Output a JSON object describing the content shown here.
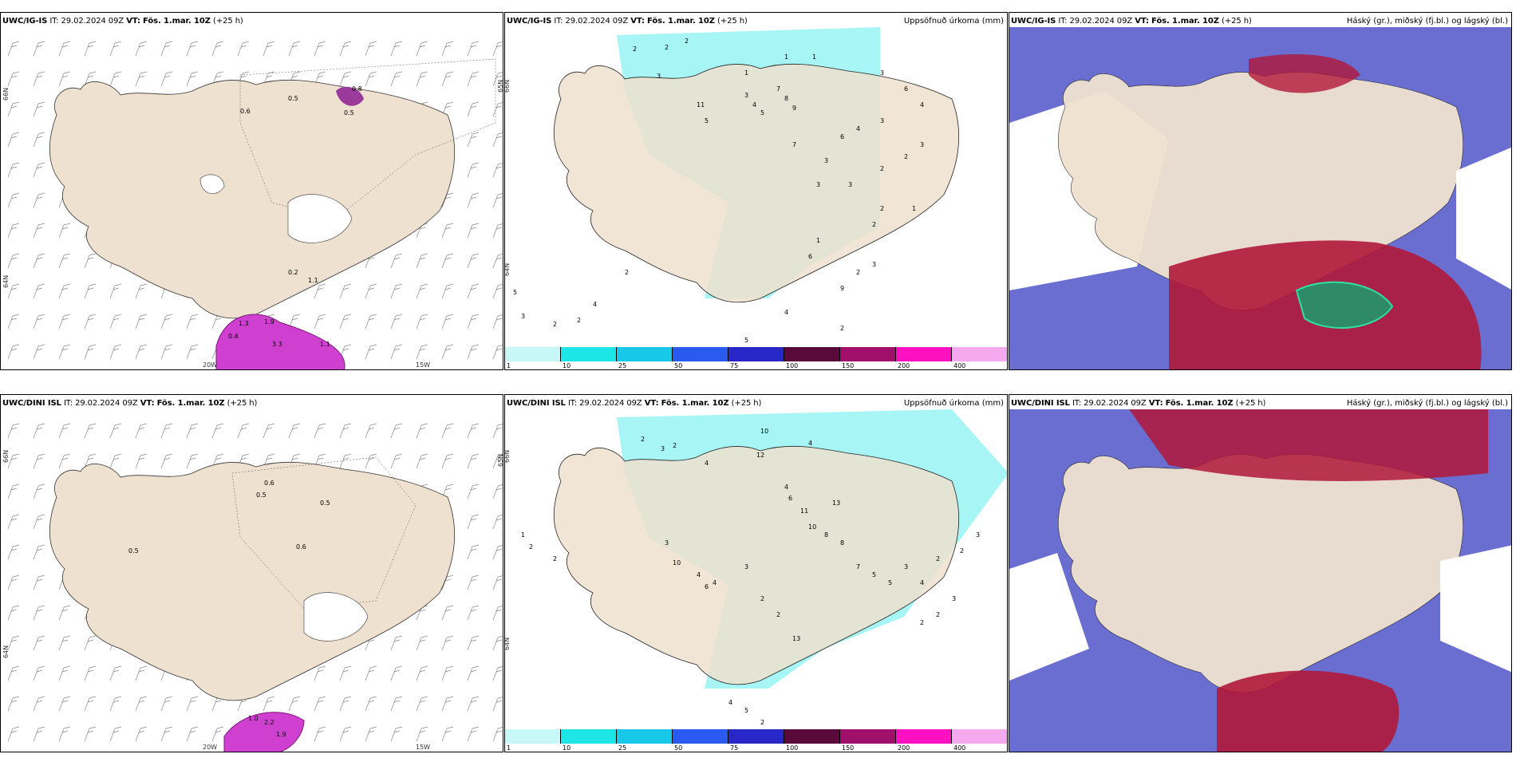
{
  "panels": [
    {
      "id": "top-left",
      "model": "UWC/IG-IS",
      "it_label": "IT:",
      "it": "29.02.2024 09Z",
      "vt_label": "VT:",
      "vt": "Fös. 1.mar. 10Z",
      "lead": "(+25 h)",
      "right_title": "",
      "lat_labels": [
        "66N",
        "64N",
        "65N"
      ],
      "lon_labels": [
        "20W",
        "15W"
      ],
      "value_labels": [
        "0.5",
        "0.5",
        "0.6",
        "0.8",
        "0.4",
        "1.3",
        "1.9",
        "3.3",
        "1.1",
        "0.2",
        "1.1"
      ]
    },
    {
      "id": "top-middle",
      "model": "UWC/IG-IS",
      "it_label": "IT:",
      "it": "29.02.2024 09Z",
      "vt_label": "VT:",
      "vt": "Fös. 1.mar. 10Z",
      "lead": "(+25 h)",
      "right_title": "Uppsöfnuð úrkoma (mm)",
      "lat_labels": [
        "66N",
        "64N"
      ],
      "lon_labels": [],
      "value_labels": [
        "2",
        "2",
        "2",
        "1",
        "1",
        "3",
        "1",
        "3",
        "4",
        "5",
        "7",
        "8",
        "9",
        "5",
        "11",
        "7",
        "3",
        "6",
        "4",
        "3",
        "3",
        "3",
        "2",
        "2",
        "3",
        "2",
        "2",
        "1",
        "3",
        "6",
        "4",
        "5",
        "3",
        "2",
        "2",
        "4",
        "2",
        "1",
        "6",
        "5",
        "4",
        "9",
        "2",
        "3",
        "2"
      ]
    },
    {
      "id": "top-right",
      "model": "UWC/IG-IS",
      "it_label": "IT:",
      "it": "29.02.2024 09Z",
      "vt_label": "VT:",
      "vt": "Fös. 1.mar. 10Z",
      "lead": "(+25 h)",
      "right_title": "Háský (gr.), miðský (fj.bl.) og lágský (bl.)",
      "lat_labels": [],
      "lon_labels": [],
      "value_labels": []
    },
    {
      "id": "bottom-left",
      "model": "UWC/DINI ISL",
      "it_label": "IT:",
      "it": "29.02.2024 09Z",
      "vt_label": "VT:",
      "vt": "Fös. 1.mar. 10Z",
      "lead": "(+25 h)",
      "right_title": "",
      "lat_labels": [
        "66N",
        "64N",
        "65N"
      ],
      "lon_labels": [
        "20W",
        "15W"
      ],
      "value_labels": [
        "0.5",
        "0.5",
        "0.6",
        "0.5",
        "0.6",
        "1.0",
        "2.2",
        "1.9"
      ]
    },
    {
      "id": "bottom-middle",
      "model": "UWC/DINI ISL",
      "it_label": "IT:",
      "it": "29.02.2024 09Z",
      "vt_label": "VT:",
      "vt": "Fös. 1.mar. 10Z",
      "lead": "(+25 h)",
      "right_title": "Uppsöfnuð úrkoma (mm)",
      "lat_labels": [
        "66N",
        "64N"
      ],
      "lon_labels": [],
      "value_labels": [
        "2",
        "3",
        "2",
        "4",
        "12",
        "10",
        "4",
        "4",
        "6",
        "11",
        "10",
        "13",
        "8",
        "8",
        "7",
        "5",
        "5",
        "3",
        "4",
        "2",
        "2",
        "3",
        "3",
        "2",
        "2",
        "1",
        "2",
        "2",
        "3",
        "10",
        "4",
        "6",
        "4",
        "3",
        "2",
        "2",
        "13",
        "4",
        "5",
        "2",
        "1",
        "1"
      ]
    },
    {
      "id": "bottom-right",
      "model": "UWC/DINI ISL",
      "it_label": "IT:",
      "it": "29.02.2024 09Z",
      "vt_label": "VT:",
      "vt": "Fös. 1.mar. 10Z",
      "lead": "(+25 h)",
      "right_title": "Háský (gr.), miðský (fj.bl.) og lágský (bl.)",
      "lat_labels": [],
      "lon_labels": [],
      "value_labels": []
    }
  ],
  "colorbar": {
    "ticks": [
      "1",
      "10",
      "25",
      "50",
      "75",
      "100",
      "150",
      "200",
      "400"
    ],
    "colors": [
      "#c8f7f7",
      "#1ee6e6",
      "#18c8e8",
      "#2a5af0",
      "#2828c8",
      "#5a0a3a",
      "#a0106a",
      "#ff10c0",
      "#f5aaf0"
    ]
  },
  "colors": {
    "land": "#efe1cf",
    "sea": "#ffffff",
    "precip_light": "#a8f5f5",
    "precip_strong": "#d040d0",
    "high_cloud_green": "#2e8a68",
    "mid_cloud_blue": "#5055c8",
    "low_cloud_red": "#b01838"
  }
}
